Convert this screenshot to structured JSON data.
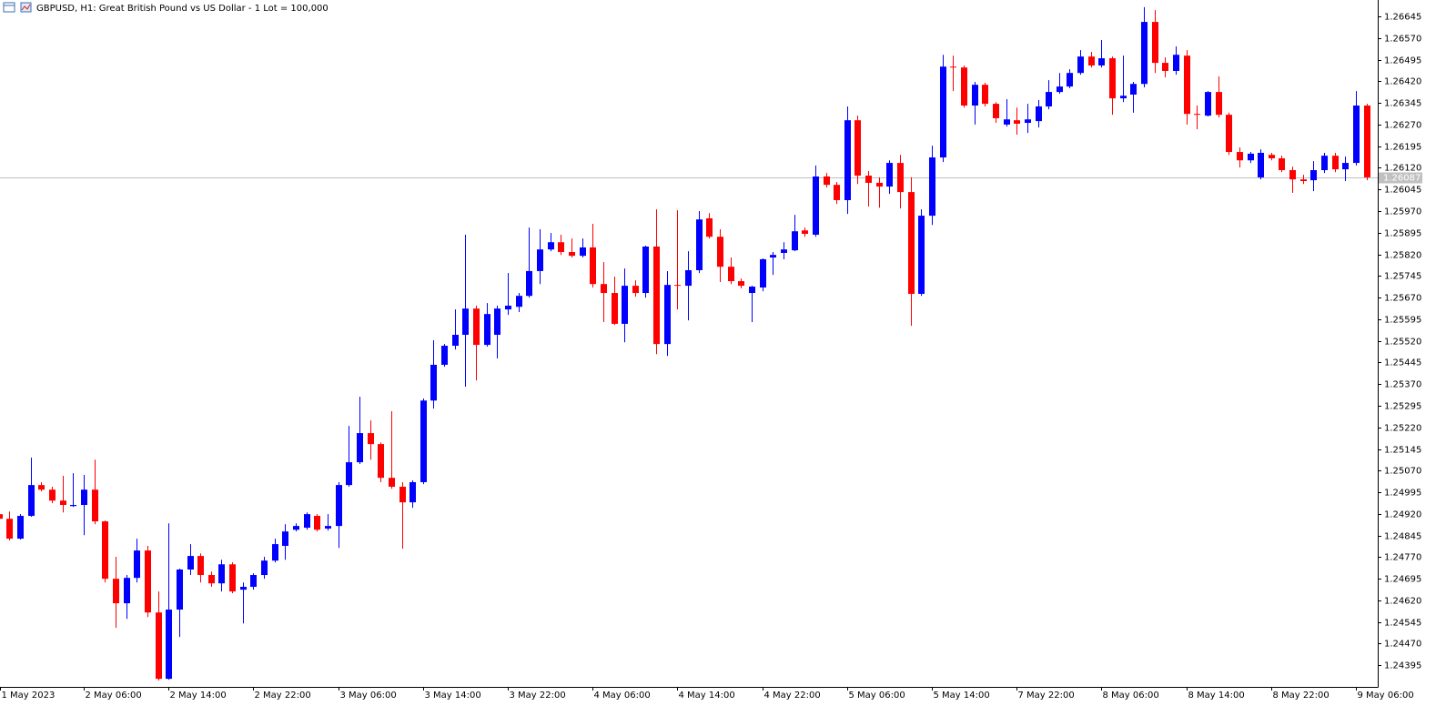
{
  "chart_data": {
    "type": "candlestick",
    "title": "GBPUSD, H1:  Great British Pound vs US Dollar - 1 Lot = 100,000",
    "categories": [
      "1 May 2023",
      null,
      null,
      null,
      null,
      null,
      null,
      null,
      "2 May 06:00",
      null,
      null,
      null,
      null,
      null,
      null,
      null,
      "2 May 14:00",
      null,
      null,
      null,
      null,
      null,
      null,
      null,
      "2 May 22:00",
      null,
      null,
      null,
      null,
      null,
      null,
      null,
      "3 May 06:00",
      null,
      null,
      null,
      null,
      null,
      null,
      null,
      "3 May 14:00",
      null,
      null,
      null,
      null,
      null,
      null,
      null,
      "3 May 22:00",
      null,
      null,
      null,
      null,
      null,
      null,
      null,
      "4 May 06:00",
      null,
      null,
      null,
      null,
      null,
      null,
      null,
      "4 May 14:00",
      null,
      null,
      null,
      null,
      null,
      null,
      null,
      "4 May 22:00",
      null,
      null,
      null,
      null,
      null,
      null,
      null,
      "5 May 06:00",
      null,
      null,
      null,
      null,
      null,
      null,
      null,
      "5 May 14:00",
      null,
      null,
      null,
      null,
      null,
      null,
      null,
      "7 May 22:00",
      null,
      null,
      null,
      null,
      null,
      null,
      null,
      "8 May 06:00",
      null,
      null,
      null,
      null,
      null,
      null,
      null,
      "8 May 14:00",
      null,
      null,
      null,
      null,
      null,
      null,
      null,
      "8 May 22:00",
      null,
      null,
      null,
      null,
      null,
      null,
      null,
      "9 May 06:00",
      null
    ],
    "open": [
      1.24919,
      1.24903,
      1.24834,
      1.24913,
      1.2502,
      1.25004,
      1.24966,
      1.24947,
      1.24951,
      1.25004,
      1.24894,
      1.24695,
      1.2461,
      1.24698,
      1.24793,
      1.24578,
      1.24348,
      1.24588,
      1.24727,
      1.24774,
      1.24708,
      1.24679,
      1.24745,
      1.24657,
      1.24667,
      1.24708,
      1.24758,
      1.24809,
      1.24865,
      1.24872,
      1.24913,
      1.24869,
      1.24878,
      1.2502,
      1.25099,
      1.252,
      1.25162,
      1.25045,
      1.25014,
      1.2496,
      1.2503,
      1.25313,
      1.25437,
      1.25503,
      1.25541,
      1.25632,
      1.25506,
      1.25541,
      1.25629,
      1.25638,
      1.25676,
      1.25762,
      1.25837,
      1.25862,
      1.25828,
      1.25815,
      1.25844,
      1.25717,
      1.25686,
      1.25579,
      1.25711,
      1.25686,
      1.25847,
      1.25509,
      1.25714,
      1.25711,
      1.25765,
      1.25945,
      1.25881,
      1.25777,
      1.25727,
      1.25686,
      1.25705,
      1.25809,
      1.25825,
      1.25834,
      1.25903,
      1.25888,
      1.2609,
      1.26061,
      1.26008,
      1.26285,
      1.26093,
      1.26068,
      1.26055,
      1.26137,
      1.26036,
      1.25683,
      1.25954,
      1.26156,
      1.26471,
      1.26468,
      1.26336,
      1.26408,
      1.26342,
      1.2627,
      1.26285,
      1.26276,
      1.26282,
      1.26333,
      1.26383,
      1.26402,
      1.26449,
      1.26506,
      1.26475,
      1.265,
      1.26361,
      1.26374,
      1.26411,
      1.26626,
      1.26484,
      1.26456,
      1.26509,
      1.26307,
      1.26301,
      1.26383,
      1.26304,
      1.26175,
      1.26146,
      1.26087,
      1.26165,
      1.26153,
      1.26112,
      1.2608,
      1.26077,
      1.26112,
      1.26162,
      1.26115,
      1.26137,
      1.26336
    ],
    "high": [
      1.24925,
      1.24928,
      1.24919,
      1.25115,
      1.2503,
      1.25014,
      1.25052,
      1.25061,
      1.25055,
      1.25108,
      1.24897,
      1.24771,
      1.24708,
      1.24834,
      1.24809,
      1.24651,
      1.24887,
      1.2473,
      1.24815,
      1.24783,
      1.2472,
      1.24761,
      1.24752,
      1.24682,
      1.24714,
      1.24771,
      1.24834,
      1.24884,
      1.24887,
      1.24925,
      1.24919,
      1.24919,
      1.2503,
      1.25225,
      1.25326,
      1.25244,
      1.25168,
      1.25276,
      1.2503,
      1.25036,
      1.2532,
      1.25522,
      1.25509,
      1.25629,
      1.25888,
      1.25642,
      1.25651,
      1.25642,
      1.25755,
      1.25686,
      1.25913,
      1.25907,
      1.25894,
      1.25888,
      1.25875,
      1.25875,
      1.25926,
      1.25793,
      1.25743,
      1.25771,
      1.2573,
      1.2585,
      1.25976,
      1.25762,
      1.25973,
      1.25831,
      1.2597,
      1.25963,
      1.25907,
      1.25809,
      1.25736,
      1.25711,
      1.25806,
      1.25828,
      1.25862,
      1.25957,
      1.25913,
      1.26128,
      1.26102,
      1.26071,
      1.26333,
      1.26301,
      1.26109,
      1.26087,
      1.26146,
      1.26165,
      1.26087,
      1.25976,
      1.26197,
      1.26512,
      1.26509,
      1.26475,
      1.26418,
      1.26415,
      1.26348,
      1.26358,
      1.26329,
      1.26342,
      1.26355,
      1.26424,
      1.26449,
      1.26462,
      1.26528,
      1.26522,
      1.26563,
      1.26506,
      1.26509,
      1.26418,
      1.26677,
      1.26667,
      1.26503,
      1.26541,
      1.26528,
      1.26336,
      1.26386,
      1.26437,
      1.26311,
      1.26191,
      1.26175,
      1.26184,
      1.26172,
      1.26162,
      1.26124,
      1.26096,
      1.26143,
      1.26172,
      1.26172,
      1.26159,
      1.26386,
      1.26342
    ],
    "low": [
      1.24897,
      1.24828,
      1.24831,
      1.2491,
      1.24998,
      1.24957,
      1.24925,
      1.24944,
      1.24846,
      1.24884,
      1.24682,
      1.24525,
      1.24556,
      1.24682,
      1.24562,
      1.24342,
      1.24345,
      1.24493,
      1.24708,
      1.24682,
      1.24667,
      1.24651,
      1.24645,
      1.2454,
      1.24657,
      1.24695,
      1.24752,
      1.24761,
      1.24859,
      1.24865,
      1.24859,
      1.24862,
      1.24802,
      1.25014,
      1.25093,
      1.25108,
      1.2503,
      1.25007,
      1.24799,
      1.24941,
      1.25023,
      1.25285,
      1.2543,
      1.2549,
      1.25361,
      1.25383,
      1.255,
      1.25459,
      1.2561,
      1.2562,
      1.2567,
      1.25717,
      1.25831,
      1.25818,
      1.25809,
      1.25809,
      1.25705,
      1.25585,
      1.25575,
      1.25515,
      1.25673,
      1.2567,
      1.25474,
      1.25468,
      1.25629,
      1.25591,
      1.25755,
      1.25875,
      1.25724,
      1.25717,
      1.25702,
      1.25585,
      1.25692,
      1.25749,
      1.25803,
      1.25831,
      1.25881,
      1.25881,
      1.26052,
      1.25995,
      1.2596,
      1.26064,
      1.25986,
      1.25982,
      1.2603,
      1.25979,
      1.25572,
      1.25676,
      1.25922,
      1.2614,
      1.26386,
      1.26329,
      1.2627,
      1.26333,
      1.26276,
      1.26263,
      1.26235,
      1.26241,
      1.2626,
      1.26323,
      1.26377,
      1.26396,
      1.26443,
      1.26468,
      1.26468,
      1.26304,
      1.26348,
      1.26311,
      1.26399,
      1.26449,
      1.26434,
      1.26443,
      1.2627,
      1.26254,
      1.26298,
      1.26295,
      1.26165,
      1.26121,
      1.26137,
      1.2608,
      1.26146,
      1.26105,
      1.26033,
      1.26064,
      1.26039,
      1.26102,
      1.26105,
      1.26074,
      1.26128,
      1.26077
    ],
    "close": [
      1.24903,
      1.24834,
      1.24913,
      1.2502,
      1.25004,
      1.24966,
      1.24951,
      1.24951,
      1.25004,
      1.24894,
      1.24695,
      1.2461,
      1.24698,
      1.24793,
      1.24578,
      1.24348,
      1.24588,
      1.24727,
      1.24774,
      1.24708,
      1.24679,
      1.24745,
      1.24651,
      1.24667,
      1.24708,
      1.24758,
      1.24815,
      1.24859,
      1.24878,
      1.24919,
      1.24865,
      1.24878,
      1.2502,
      1.25099,
      1.252,
      1.25162,
      1.25045,
      1.25014,
      1.2496,
      1.2503,
      1.25313,
      1.25437,
      1.25503,
      1.25541,
      1.25632,
      1.25506,
      1.25613,
      1.25632,
      1.25642,
      1.25676,
      1.25762,
      1.25837,
      1.25862,
      1.25828,
      1.25815,
      1.25844,
      1.25717,
      1.25686,
      1.25579,
      1.25711,
      1.25686,
      1.25847,
      1.25509,
      1.25714,
      1.25711,
      1.25765,
      1.25941,
      1.25881,
      1.25777,
      1.25727,
      1.25711,
      1.25708,
      1.25803,
      1.25818,
      1.25837,
      1.259,
      1.25891,
      1.2609,
      1.26061,
      1.26008,
      1.26285,
      1.26093,
      1.26068,
      1.26055,
      1.26137,
      1.26036,
      1.25683,
      1.25954,
      1.26156,
      1.26471,
      1.26468,
      1.26336,
      1.26408,
      1.26342,
      1.26292,
      1.26288,
      1.26273,
      1.26288,
      1.26333,
      1.26383,
      1.26402,
      1.26449,
      1.26506,
      1.26475,
      1.265,
      1.26361,
      1.2637,
      1.26411,
      1.26626,
      1.26484,
      1.26456,
      1.26512,
      1.26307,
      1.26304,
      1.26383,
      1.26304,
      1.26175,
      1.26146,
      1.26169,
      1.26172,
      1.26153,
      1.26112,
      1.2608,
      1.26074,
      1.26112,
      1.26162,
      1.26115,
      1.26137,
      1.26336,
      1.26087
    ],
    "up_color": "#0000ff",
    "down_color": "#ff0000",
    "bid": 1.26087,
    "ylim": [
      1.2432,
      1.26702
    ],
    "yticks": [
      1.24395,
      {
        "value": 1.2447,
        "label": "1.24470"
      },
      1.24545,
      {
        "value": 1.2462,
        "label": "1.24620"
      },
      1.24695,
      {
        "value": 1.2477,
        "label": "1.24770"
      },
      1.24845,
      {
        "value": 1.2492,
        "label": "1.24920"
      },
      1.24995,
      {
        "value": 1.2507,
        "label": "1.25070"
      },
      1.25145,
      {
        "value": 1.2522,
        "label": "1.25220"
      },
      1.25295,
      {
        "value": 1.2537,
        "label": "1.25370"
      },
      1.25445,
      {
        "value": 1.2552,
        "label": "1.25520"
      },
      1.25595,
      {
        "value": 1.2567,
        "label": "1.25670"
      },
      1.25745,
      {
        "value": 1.2582,
        "label": "1.25820"
      },
      1.25895,
      {
        "value": 1.2597,
        "label": "1.25970"
      },
      1.26045,
      {
        "value": 1.2612,
        "label": "1.26120"
      },
      1.26195,
      {
        "value": 1.2627,
        "label": "1.26270"
      },
      1.26345,
      {
        "value": 1.2642,
        "label": "1.26420"
      },
      1.26495,
      {
        "value": 1.2657,
        "label": "1.26570"
      },
      1.26645
    ],
    "grid": false
  }
}
